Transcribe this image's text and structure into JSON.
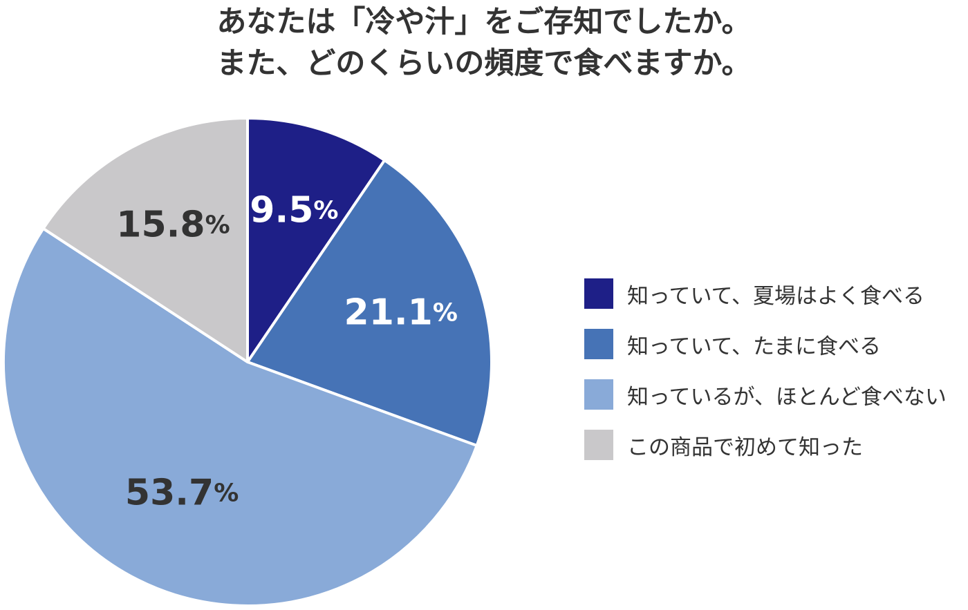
{
  "chart_data": {
    "type": "pie",
    "title_lines": [
      "あなたは「冷や汁」をご存知でしたか。",
      "また、どのくらいの頻度で食べますか。"
    ],
    "categories": [
      "知っていて、夏場はよく食べる",
      "知っていて、たまに食べる",
      "知っているが、ほとんど食べない",
      "この商品で初めて知った"
    ],
    "values": [
      9.5,
      21.1,
      53.7,
      15.8
    ],
    "value_labels": [
      "9.5",
      "21.1",
      "53.7",
      "15.8"
    ],
    "unit": "%",
    "colors": [
      "#1e1f87",
      "#4673b6",
      "#89aad8",
      "#c9c8ca"
    ],
    "label_colors": [
      "#ffffff",
      "#ffffff",
      "#333333",
      "#333333"
    ],
    "start": "12 o'clock",
    "direction": "clockwise",
    "legend_position": "right"
  }
}
